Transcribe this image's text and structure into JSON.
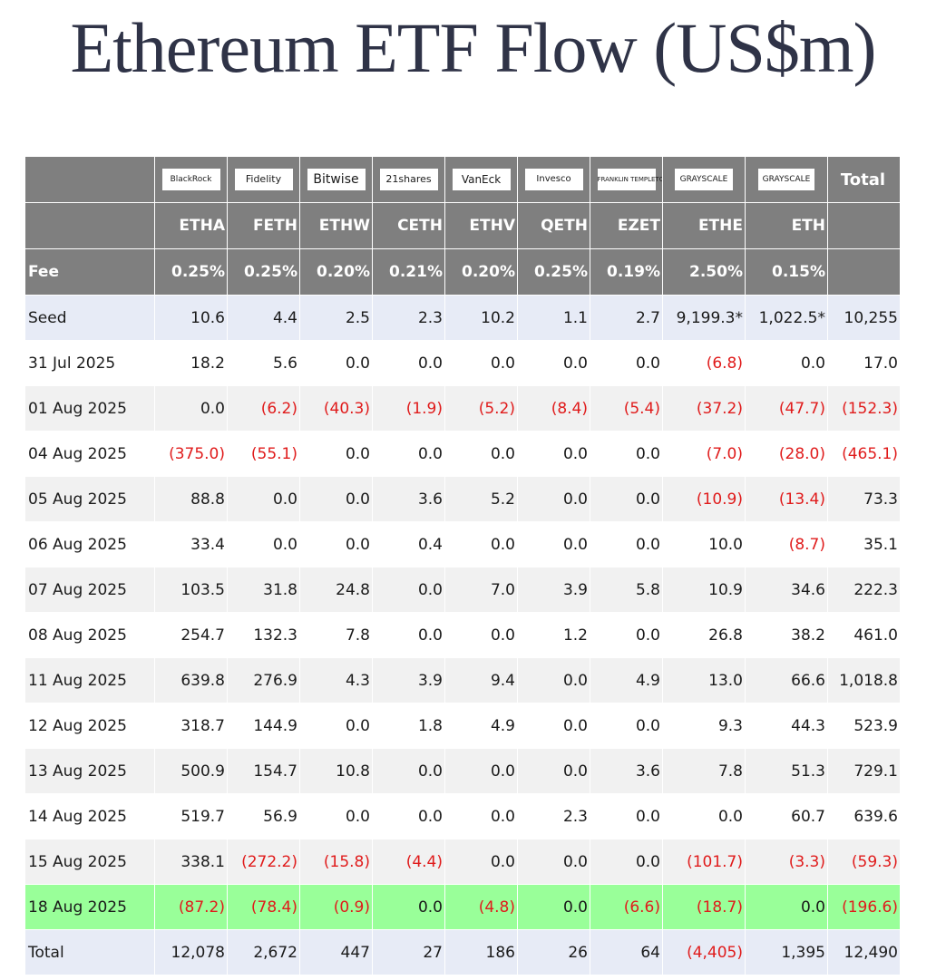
{
  "title": "Ethereum ETF Flow (US$m)",
  "colors": {
    "header": "#7f7f7f",
    "stripe_light": "#ffffff",
    "stripe_gray": "#f1f1f1",
    "first_row": "#e7ebf6",
    "highlight": "#99ff99",
    "negative": "#e01b1b"
  },
  "chart_data": {
    "type": "table",
    "issuers": [
      "BlackRock",
      "Fidelity",
      "Bitwise",
      "21shares",
      "VanEck",
      "Invesco",
      "FRANKLIN TEMPLETON",
      "GRAYSCALE",
      "GRAYSCALE"
    ],
    "total_header": "Total",
    "tickers": [
      "ETHA",
      "FETH",
      "ETHW",
      "CETH",
      "ETHV",
      "QETH",
      "EZET",
      "ETHE",
      "ETH"
    ],
    "fee_label": "Fee",
    "fees": [
      "0.25%",
      "0.25%",
      "0.20%",
      "0.21%",
      "0.20%",
      "0.25%",
      "0.19%",
      "2.50%",
      "0.15%"
    ],
    "rows": [
      {
        "label": "Seed",
        "values": [
          "10.6",
          "4.4",
          "2.5",
          "2.3",
          "10.2",
          "1.1",
          "2.7",
          "9,199.3*",
          "1,022.5*",
          "10,255"
        ]
      },
      {
        "label": "31 Jul 2025",
        "values": [
          "18.2",
          "5.6",
          "0.0",
          "0.0",
          "0.0",
          "0.0",
          "0.0",
          "(6.8)",
          "0.0",
          "17.0"
        ]
      },
      {
        "label": "01 Aug 2025",
        "values": [
          "0.0",
          "(6.2)",
          "(40.3)",
          "(1.9)",
          "(5.2)",
          "(8.4)",
          "(5.4)",
          "(37.2)",
          "(47.7)",
          "(152.3)"
        ]
      },
      {
        "label": "04 Aug 2025",
        "values": [
          "(375.0)",
          "(55.1)",
          "0.0",
          "0.0",
          "0.0",
          "0.0",
          "0.0",
          "(7.0)",
          "(28.0)",
          "(465.1)"
        ]
      },
      {
        "label": "05 Aug 2025",
        "values": [
          "88.8",
          "0.0",
          "0.0",
          "3.6",
          "5.2",
          "0.0",
          "0.0",
          "(10.9)",
          "(13.4)",
          "73.3"
        ]
      },
      {
        "label": "06 Aug 2025",
        "values": [
          "33.4",
          "0.0",
          "0.0",
          "0.4",
          "0.0",
          "0.0",
          "0.0",
          "10.0",
          "(8.7)",
          "35.1"
        ]
      },
      {
        "label": "07 Aug 2025",
        "values": [
          "103.5",
          "31.8",
          "24.8",
          "0.0",
          "7.0",
          "3.9",
          "5.8",
          "10.9",
          "34.6",
          "222.3"
        ]
      },
      {
        "label": "08 Aug 2025",
        "values": [
          "254.7",
          "132.3",
          "7.8",
          "0.0",
          "0.0",
          "1.2",
          "0.0",
          "26.8",
          "38.2",
          "461.0"
        ]
      },
      {
        "label": "11 Aug 2025",
        "values": [
          "639.8",
          "276.9",
          "4.3",
          "3.9",
          "9.4",
          "0.0",
          "4.9",
          "13.0",
          "66.6",
          "1,018.8"
        ]
      },
      {
        "label": "12 Aug 2025",
        "values": [
          "318.7",
          "144.9",
          "0.0",
          "1.8",
          "4.9",
          "0.0",
          "0.0",
          "9.3",
          "44.3",
          "523.9"
        ]
      },
      {
        "label": "13 Aug 2025",
        "values": [
          "500.9",
          "154.7",
          "10.8",
          "0.0",
          "0.0",
          "0.0",
          "3.6",
          "7.8",
          "51.3",
          "729.1"
        ]
      },
      {
        "label": "14 Aug 2025",
        "values": [
          "519.7",
          "56.9",
          "0.0",
          "0.0",
          "0.0",
          "2.3",
          "0.0",
          "0.0",
          "60.7",
          "639.6"
        ]
      },
      {
        "label": "15 Aug 2025",
        "values": [
          "338.1",
          "(272.2)",
          "(15.8)",
          "(4.4)",
          "0.0",
          "0.0",
          "0.0",
          "(101.7)",
          "(3.3)",
          "(59.3)"
        ]
      },
      {
        "label": "18 Aug 2025",
        "values": [
          "(87.2)",
          "(78.4)",
          "(0.9)",
          "0.0",
          "(4.8)",
          "0.0",
          "(6.6)",
          "(18.7)",
          "0.0",
          "(196.6)"
        ],
        "highlighted": true
      },
      {
        "label": "Total",
        "values": [
          "12,078",
          "2,672",
          "447",
          "27",
          "186",
          "26",
          "64",
          "(4,405)",
          "1,395",
          "12,490"
        ]
      }
    ]
  }
}
